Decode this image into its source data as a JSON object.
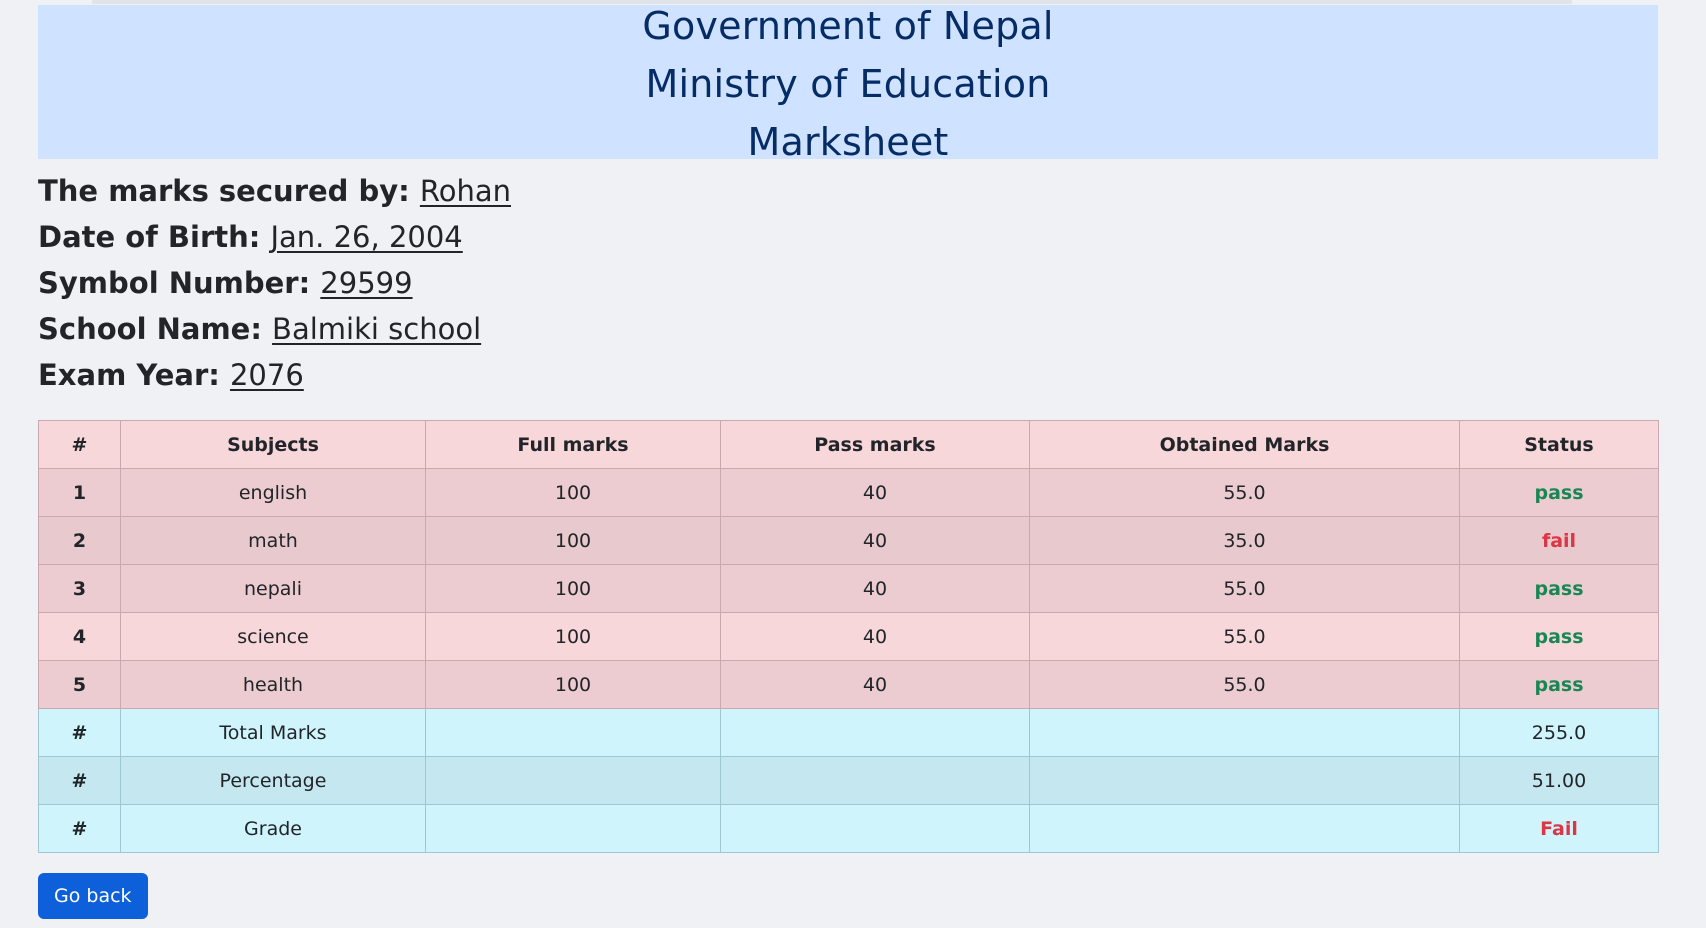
{
  "header": {
    "line1": "Government of Nepal",
    "line2": "Ministry of Education",
    "line3": "Marksheet"
  },
  "student": {
    "name_label": "The marks secured by:",
    "name": "Rohan",
    "dob_label": "Date of Birth:",
    "dob": "Jan. 26, 2004",
    "symbol_label": "Symbol Number:",
    "symbol": "29599",
    "school_label": "School Name:",
    "school": "Balmiki school",
    "year_label": "Exam Year:",
    "year": "2076"
  },
  "table": {
    "headers": [
      "#",
      "Subjects",
      "Full marks",
      "Pass marks",
      "Obtained Marks",
      "Status"
    ],
    "rows": [
      {
        "num": "1",
        "subject": "english",
        "full": "100",
        "pass": "40",
        "obtained": "55.0",
        "status": "pass"
      },
      {
        "num": "2",
        "subject": "math",
        "full": "100",
        "pass": "40",
        "obtained": "35.0",
        "status": "fail"
      },
      {
        "num": "3",
        "subject": "nepali",
        "full": "100",
        "pass": "40",
        "obtained": "55.0",
        "status": "pass"
      },
      {
        "num": "4",
        "subject": "science",
        "full": "100",
        "pass": "40",
        "obtained": "55.0",
        "status": "pass"
      },
      {
        "num": "5",
        "subject": "health",
        "full": "100",
        "pass": "40",
        "obtained": "55.0",
        "status": "pass"
      }
    ],
    "summary": [
      {
        "num": "#",
        "label": "Total Marks",
        "value": "255.0"
      },
      {
        "num": "#",
        "label": "Percentage",
        "value": "51.00"
      },
      {
        "num": "#",
        "label": "Grade",
        "value": "Fail"
      }
    ]
  },
  "buttons": {
    "back_label": "Go back"
  },
  "colors": {
    "header_bg": "#cfe2ff",
    "header_text": "#052c65",
    "pass": "#198754",
    "fail": "#dc3545",
    "button": "#0d60d9"
  }
}
